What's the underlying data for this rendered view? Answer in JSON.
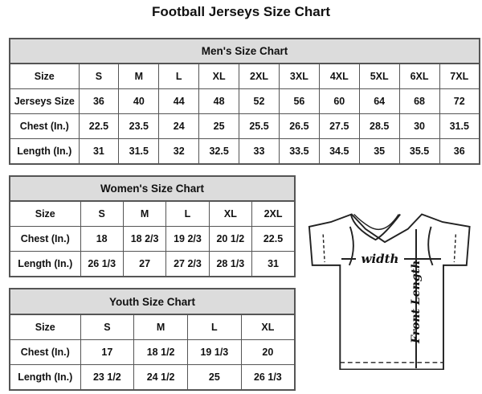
{
  "title": "Football Jerseys Size Chart",
  "tables": [
    {
      "id": "men",
      "title": "Men's Size Chart",
      "first_col_width": 86,
      "rows": [
        {
          "label": "Size",
          "cells": [
            "S",
            "M",
            "L",
            "XL",
            "2XL",
            "3XL",
            "4XL",
            "5XL",
            "6XL",
            "7XL"
          ]
        },
        {
          "label": "Jerseys Size",
          "cells": [
            "36",
            "40",
            "44",
            "48",
            "52",
            "56",
            "60",
            "64",
            "68",
            "72"
          ]
        },
        {
          "label": "Chest (In.)",
          "cells": [
            "22.5",
            "23.5",
            "24",
            "25",
            "25.5",
            "26.5",
            "27.5",
            "28.5",
            "30",
            "31.5"
          ]
        },
        {
          "label": "Length (In.)",
          "cells": [
            "31",
            "31.5",
            "32",
            "32.5",
            "33",
            "33.5",
            "34.5",
            "35",
            "35.5",
            "36"
          ]
        }
      ]
    },
    {
      "id": "women",
      "title": "Women's Size Chart",
      "first_col_width": 88,
      "rows": [
        {
          "label": "Size",
          "cells": [
            "S",
            "M",
            "L",
            "XL",
            "2XL"
          ]
        },
        {
          "label": "Chest (In.)",
          "cells": [
            "18",
            "18 2/3",
            "19 2/3",
            "20 1/2",
            "22.5"
          ]
        },
        {
          "label": "Length (In.)",
          "cells": [
            "26 1/3",
            "27",
            "27 2/3",
            "28 1/3",
            "31"
          ]
        }
      ]
    },
    {
      "id": "youth",
      "title": "Youth Size Chart",
      "first_col_width": 88,
      "rows": [
        {
          "label": "Size",
          "cells": [
            "S",
            "M",
            "L",
            "XL"
          ]
        },
        {
          "label": "Chest (In.)",
          "cells": [
            "17",
            "18 1/2",
            "19 1/3",
            "20"
          ]
        },
        {
          "label": "Length (In.)",
          "cells": [
            "23 1/2",
            "24 1/2",
            "25",
            "26 1/3"
          ]
        }
      ]
    }
  ],
  "diagram": {
    "width_label": "width",
    "length_label": "Front Length"
  }
}
